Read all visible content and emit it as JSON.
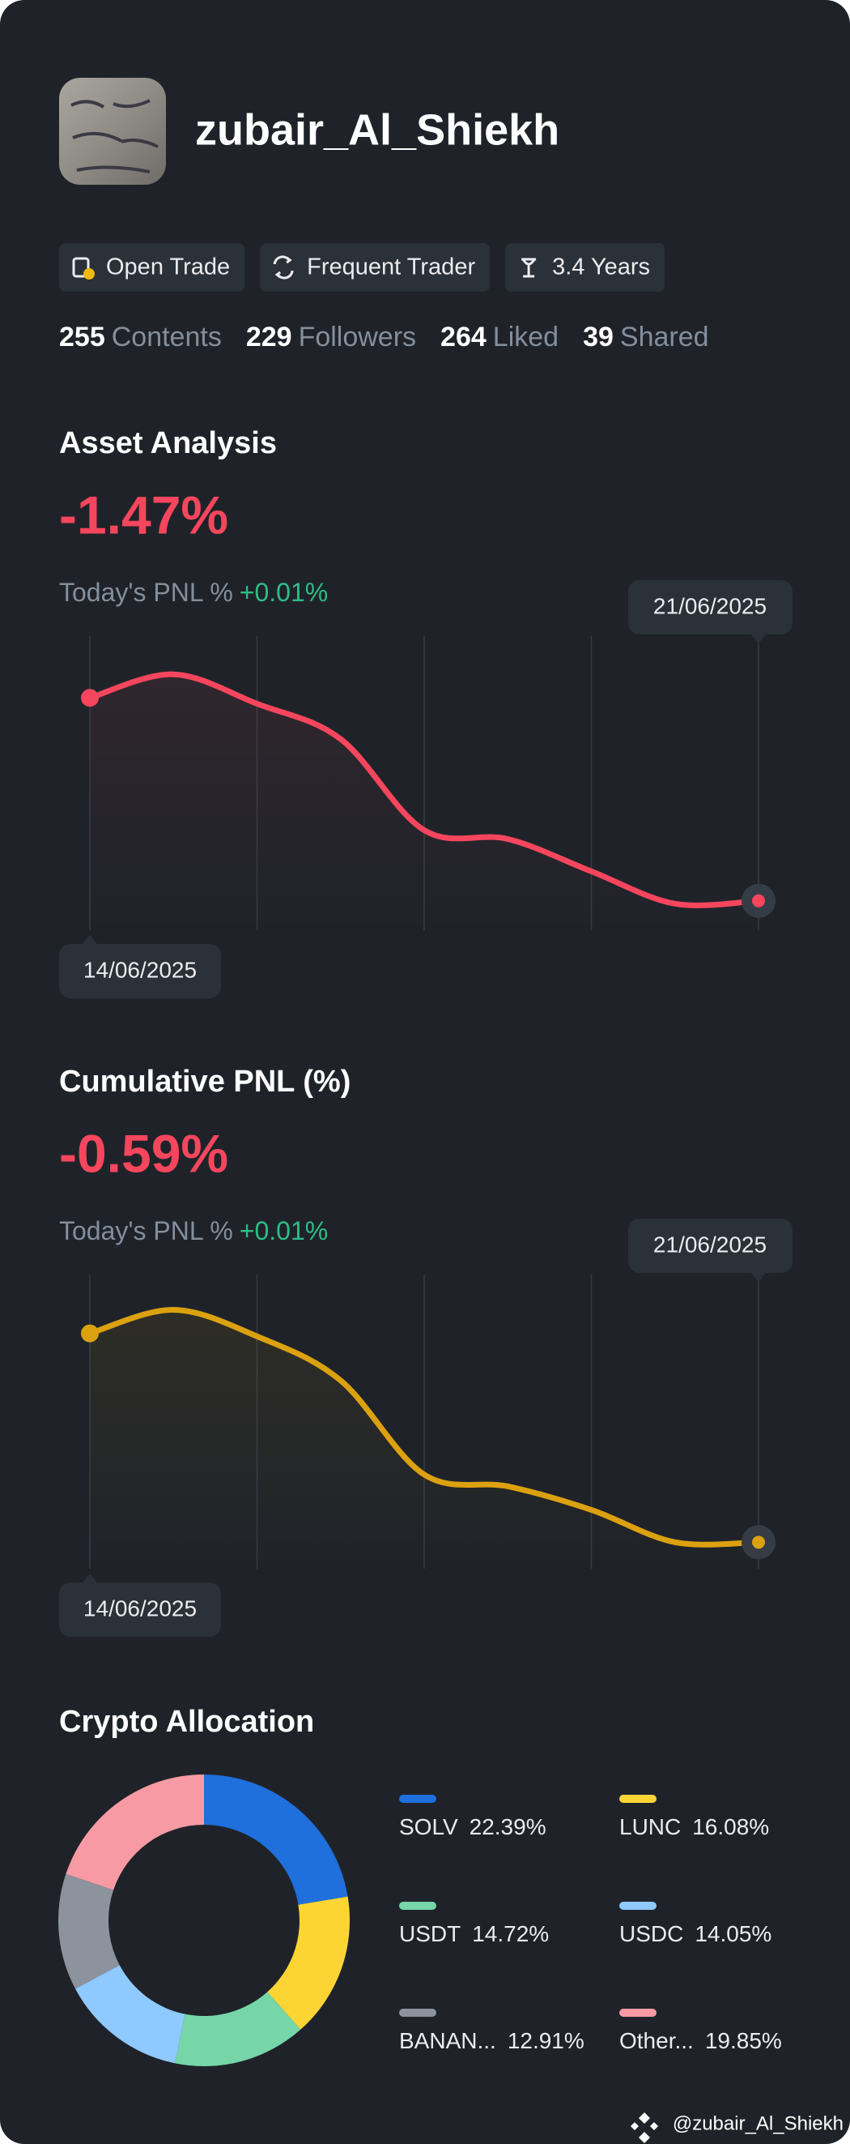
{
  "profile": {
    "name": "zubair_Al_Shiekh",
    "badges": [
      "Open Trade",
      "Frequent Trader",
      "3.4 Years"
    ],
    "stats": [
      {
        "value": 255,
        "label": "Contents"
      },
      {
        "value": 229,
        "label": "Followers"
      },
      {
        "value": 264,
        "label": "Liked"
      },
      {
        "value": 39,
        "label": "Shared"
      }
    ]
  },
  "chart_data": [
    {
      "type": "line",
      "title": "Asset Analysis",
      "headline": "-1.47%",
      "pnl_label": "Today's PNL %",
      "pnl_value": "+0.01%",
      "categories": [
        "14/06/2025",
        null,
        null,
        null,
        null,
        null,
        null,
        null,
        "21/06/2025"
      ],
      "values": [
        79,
        87,
        77,
        65,
        34,
        31,
        20,
        9,
        10
      ],
      "ylim": [
        0,
        100
      ],
      "color": "#f6465d",
      "grid": true
    },
    {
      "type": "line",
      "title": "Cumulative PNL (%)",
      "headline": "-0.59%",
      "pnl_label": "Today's PNL %",
      "pnl_value": "+0.01%",
      "categories": [
        "14/06/2025",
        null,
        null,
        null,
        null,
        null,
        null,
        null,
        "21/06/2025"
      ],
      "values": [
        80,
        88,
        79,
        64,
        32,
        28,
        20,
        9,
        9
      ],
      "ylim": [
        0,
        100
      ],
      "color": "#dba10f",
      "grid": true
    },
    {
      "type": "pie",
      "title": "Crypto Allocation",
      "donut": true,
      "categories": [
        "SOLV",
        "LUNC",
        "USDT",
        "USDC",
        "BANAN...",
        "Other..."
      ],
      "values": [
        22.39,
        16.08,
        14.72,
        14.05,
        12.91,
        19.85
      ],
      "value_labels": [
        "22.39%",
        "16.08%",
        "14.72%",
        "14.05%",
        "12.91%",
        "19.85%"
      ],
      "colors": [
        "#1f6fdc",
        "#fcd535",
        "#76d6a8",
        "#8ec9ff",
        "#8c939d",
        "#f79aa3"
      ]
    }
  ],
  "watermark": "@zubair_Al_Shiekh"
}
